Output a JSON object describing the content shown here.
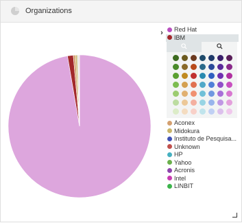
{
  "header": {
    "title": "Organizations",
    "icon": "pie-chart-icon"
  },
  "chart_data": {
    "type": "pie",
    "values": [
      {
        "label": "Red Hat",
        "value": 97.3,
        "color": "#dda6dd"
      },
      {
        "label": "IBM",
        "value": 1.3,
        "color": "#a2282b"
      },
      {
        "label": "Aconex",
        "value": 0.5,
        "color": "#d4a070"
      },
      {
        "label": "Midokura",
        "value": 0.4,
        "color": "#c9b56a"
      },
      {
        "label": "Instituto de Pesquisa...",
        "value": 0.3,
        "color": "#d9d9d9"
      },
      {
        "label": "Unknown",
        "value": 0.2,
        "color": "#f0e0d0"
      }
    ]
  },
  "legend": {
    "toggle": "›",
    "top_items": [
      {
        "label": "Red Hat",
        "color": "#b84fbf"
      },
      {
        "label": "IBM",
        "color": "#a2282b"
      }
    ],
    "zoom_out_icon": "zoom-out-icon",
    "zoom_in_icon": "zoom-in-icon",
    "palette_colors": [
      [
        "#3c6b1f",
        "#6b5a1f",
        "#6b3a1f",
        "#1f4b6b",
        "#1f3a6b",
        "#3a1f6b",
        "#5a1f5a"
      ],
      [
        "#4a8a2a",
        "#8a6a2a",
        "#b84a1a",
        "#2a6a8a",
        "#2a4a9a",
        "#5a2a9a",
        "#8a2a8a"
      ],
      [
        "#5aa030",
        "#c08a20",
        "#c03030",
        "#2a8ab0",
        "#3060c0",
        "#7030b0",
        "#b030a0"
      ],
      [
        "#7cbc50",
        "#d4a050",
        "#e07050",
        "#50a8c8",
        "#5080d8",
        "#9050c8",
        "#c850c0"
      ],
      [
        "#9ccc70",
        "#e0b070",
        "#f09070",
        "#70c0d8",
        "#7098e0",
        "#a870d8",
        "#d878d0"
      ],
      [
        "#bcdca0",
        "#ecc898",
        "#f4b0a0",
        "#98d4e4",
        "#98b4ec",
        "#c098e4",
        "#e4a0dc"
      ],
      [
        "#dcecc8",
        "#f4dcc0",
        "#f8d0c8",
        "#c0e4ec",
        "#c0d0f4",
        "#dcc0ec",
        "#f0c8ec"
      ]
    ],
    "items": [
      {
        "label": "Aconex",
        "color": "#d4a070"
      },
      {
        "label": "Midokura",
        "color": "#c9b56a"
      },
      {
        "label": "Instituto de Pesquisa...",
        "color": "#3f51b5"
      },
      {
        "label": "Unknown",
        "color": "#c0504d"
      },
      {
        "label": "HP",
        "color": "#45b0c0"
      },
      {
        "label": "Yahoo",
        "color": "#6ab04c"
      },
      {
        "label": "Acronis",
        "color": "#8e44ad"
      },
      {
        "label": "Intel",
        "color": "#c83cb0"
      },
      {
        "label": "LINBIT",
        "color": "#3cb44b"
      }
    ]
  }
}
